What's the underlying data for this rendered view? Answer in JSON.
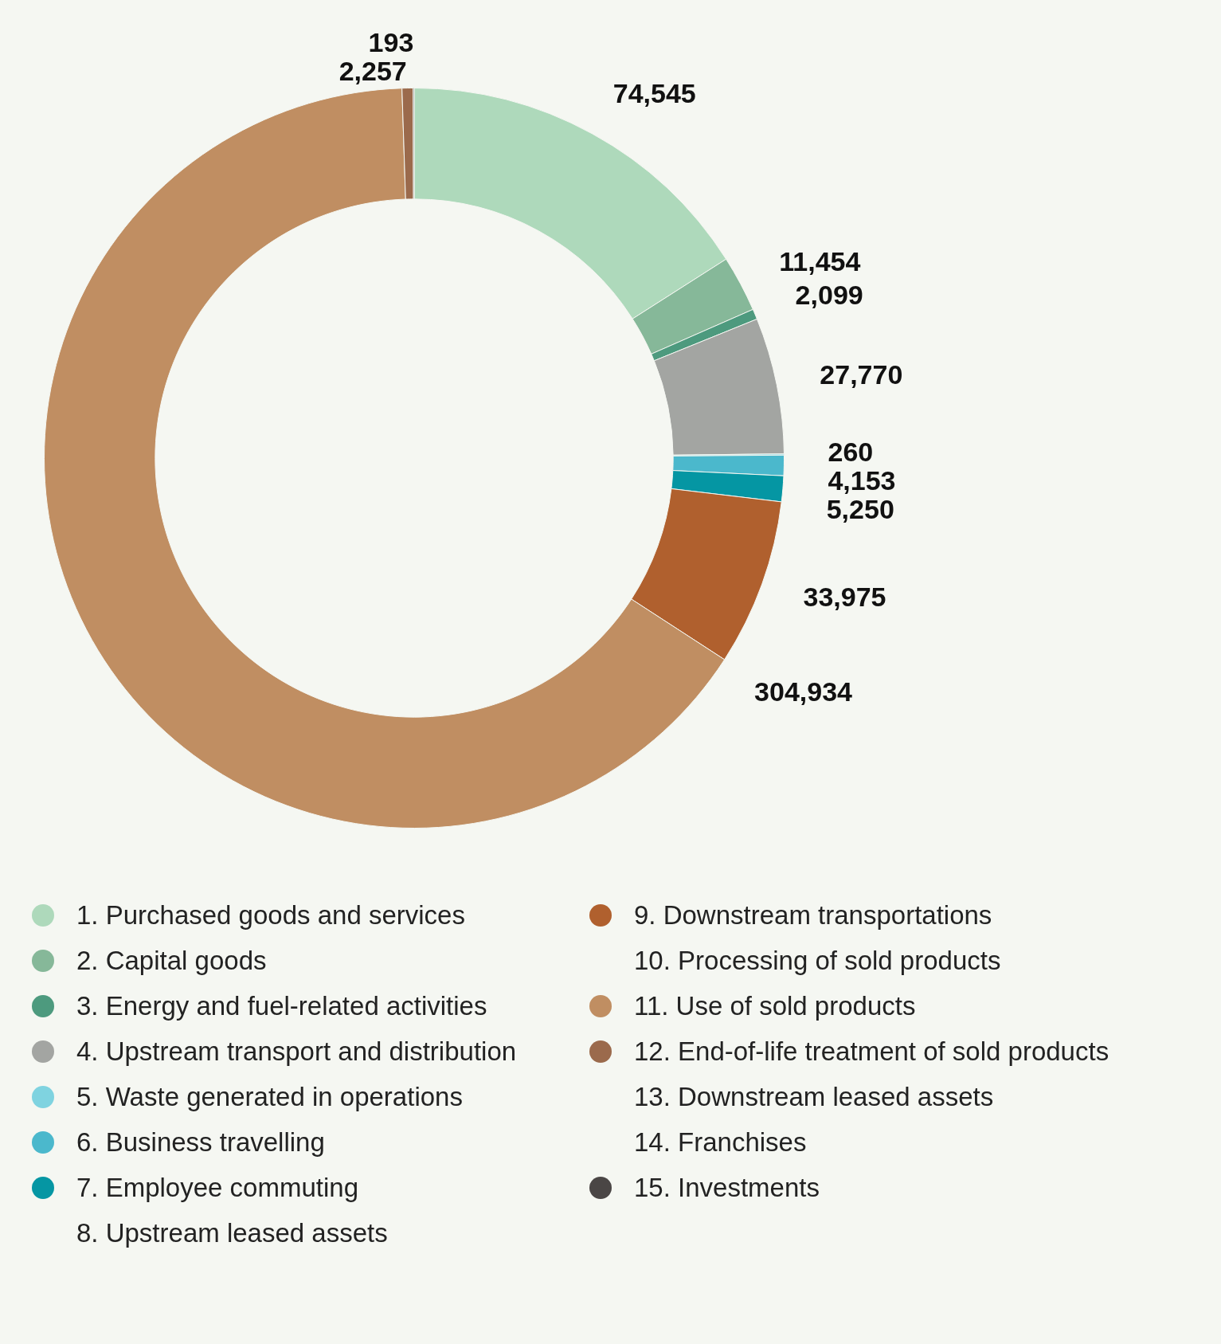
{
  "chart_data": {
    "type": "donut",
    "categories": [
      "1. Purchased goods and services",
      "2. Capital goods",
      "3. Energy and fuel-related activities",
      "4. Upstream transport and distribution",
      "5. Waste generated in operations",
      "6. Business travelling",
      "7. Employee commuting",
      "8. Upstream leased assets",
      "9. Downstream transportations",
      "10. Processing of sold products",
      "11. Use of sold products",
      "12. End-of-life treatment of sold products",
      "13. Downstream leased assets",
      "14. Franchises",
      "15. Investments"
    ],
    "values": [
      74545,
      11454,
      2099,
      27770,
      260,
      4153,
      5250,
      null,
      33975,
      null,
      304934,
      2257,
      null,
      null,
      193
    ],
    "colors": [
      "#aed9bb",
      "#86b899",
      "#4d9a7e",
      "#a3a5a2",
      "#7fd3e0",
      "#4bb8cc",
      "#0596a3",
      null,
      "#b0602e",
      null,
      "#c08e62",
      "#9b6a4c",
      null,
      null,
      "#4a4645"
    ],
    "value_labels": [
      "74,545",
      "11,454",
      "2,099",
      "27,770",
      "260",
      "4,153",
      "5,250",
      null,
      "33,975",
      null,
      "304,934",
      "2,257",
      null,
      null,
      "193"
    ],
    "legend": "bottom"
  }
}
